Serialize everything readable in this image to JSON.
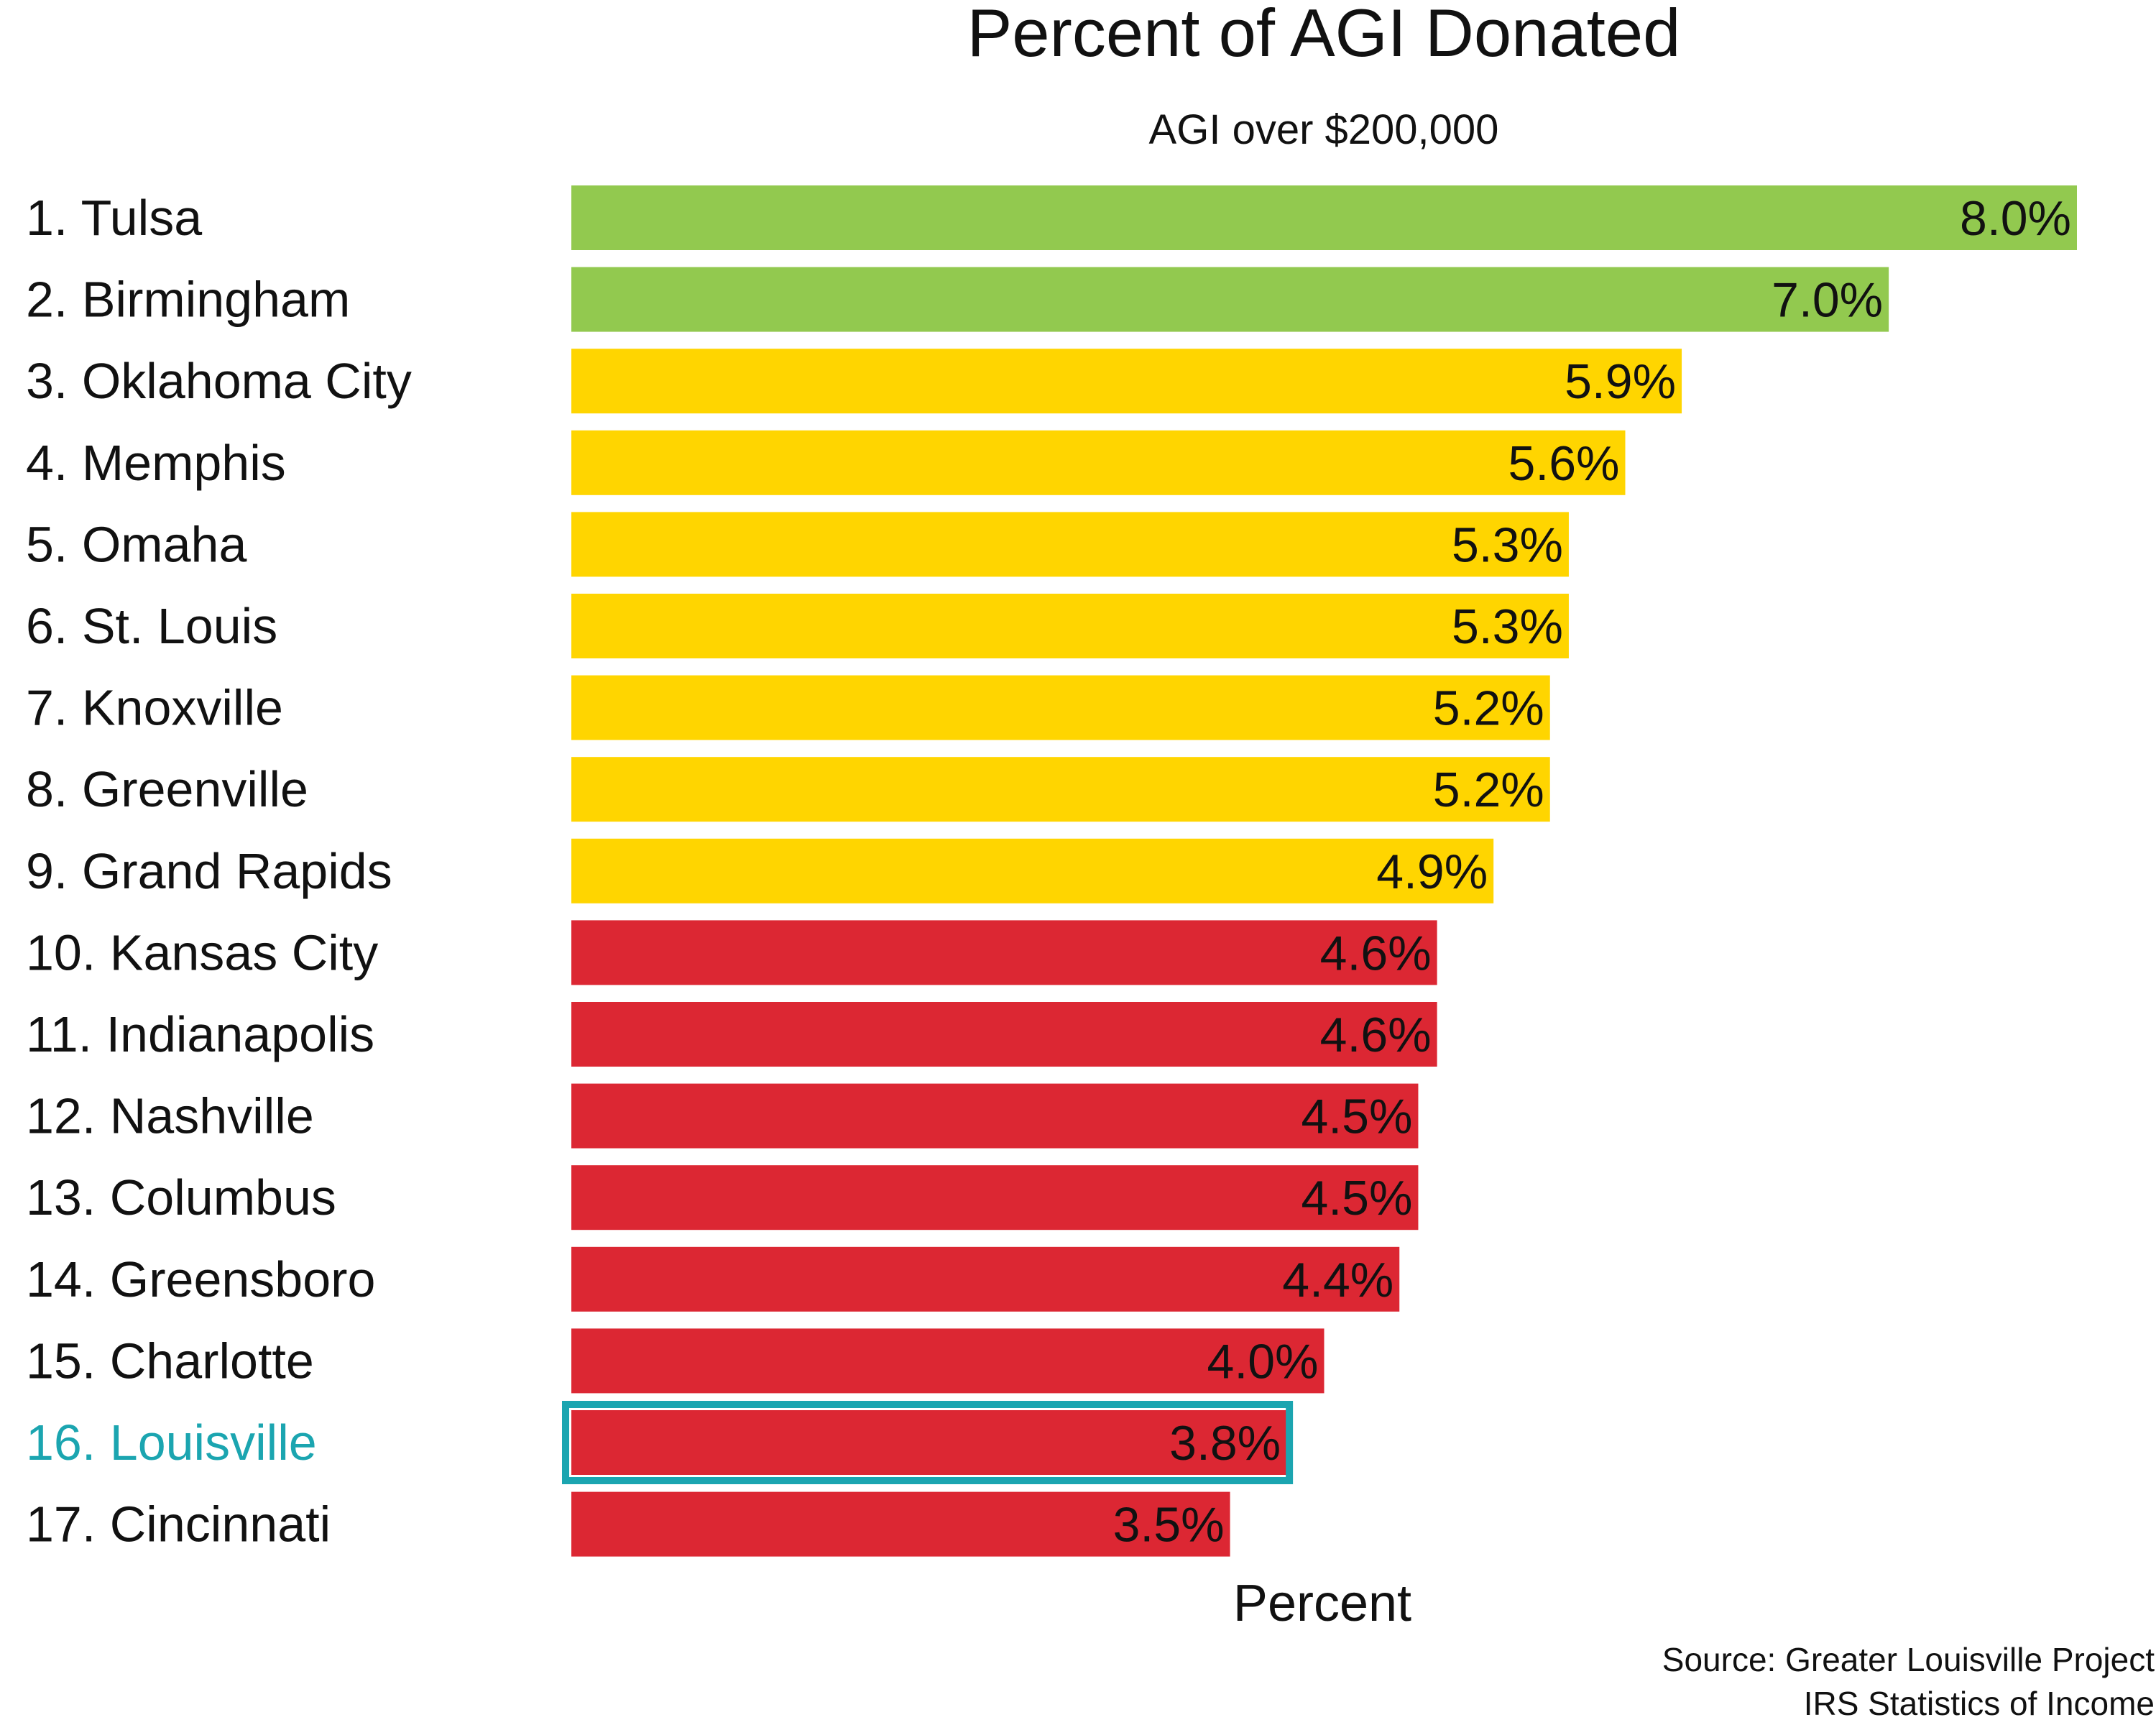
{
  "chart_data": {
    "type": "bar",
    "orientation": "horizontal",
    "title": "Percent of AGI Donated",
    "subtitle": "AGI over $200,000",
    "xlabel": "Percent",
    "ylabel": "",
    "xlim": [
      0,
      8.0
    ],
    "grid": false,
    "legend": "none",
    "categories": [
      "1. Tulsa",
      "2. Birmingham",
      "3. Oklahoma City",
      "4. Memphis",
      "5. Omaha",
      "6. St. Louis",
      "7. Knoxville",
      "8. Greenville",
      "9. Grand Rapids",
      "10. Kansas City",
      "11. Indianapolis",
      "12. Nashville",
      "13. Columbus",
      "14. Greensboro",
      "15. Charlotte",
      "16. Louisville",
      "17. Cincinnati"
    ],
    "values": [
      8.0,
      7.0,
      5.9,
      5.6,
      5.3,
      5.3,
      5.2,
      5.2,
      4.9,
      4.6,
      4.6,
      4.5,
      4.5,
      4.4,
      4.0,
      3.8,
      3.5
    ],
    "data_labels": [
      "8.0%",
      "7.0%",
      "5.9%",
      "5.6%",
      "5.3%",
      "5.3%",
      "5.2%",
      "5.2%",
      "4.9%",
      "4.6%",
      "4.6%",
      "4.5%",
      "4.5%",
      "4.4%",
      "4.0%",
      "3.8%",
      "3.5%"
    ],
    "bar_colors": [
      "#92C94F",
      "#92C94F",
      "#FFD500",
      "#FFD500",
      "#FFD500",
      "#FFD500",
      "#FFD500",
      "#FFD500",
      "#FFD500",
      "#DC2733",
      "#DC2733",
      "#DC2733",
      "#DC2733",
      "#DC2733",
      "#DC2733",
      "#DC2733",
      "#DC2733"
    ],
    "highlight": {
      "category": "16. Louisville",
      "color": "#1BA5B0"
    },
    "source": [
      "Source: Greater Louisville Project",
      "IRS Statistics of Income"
    ]
  }
}
